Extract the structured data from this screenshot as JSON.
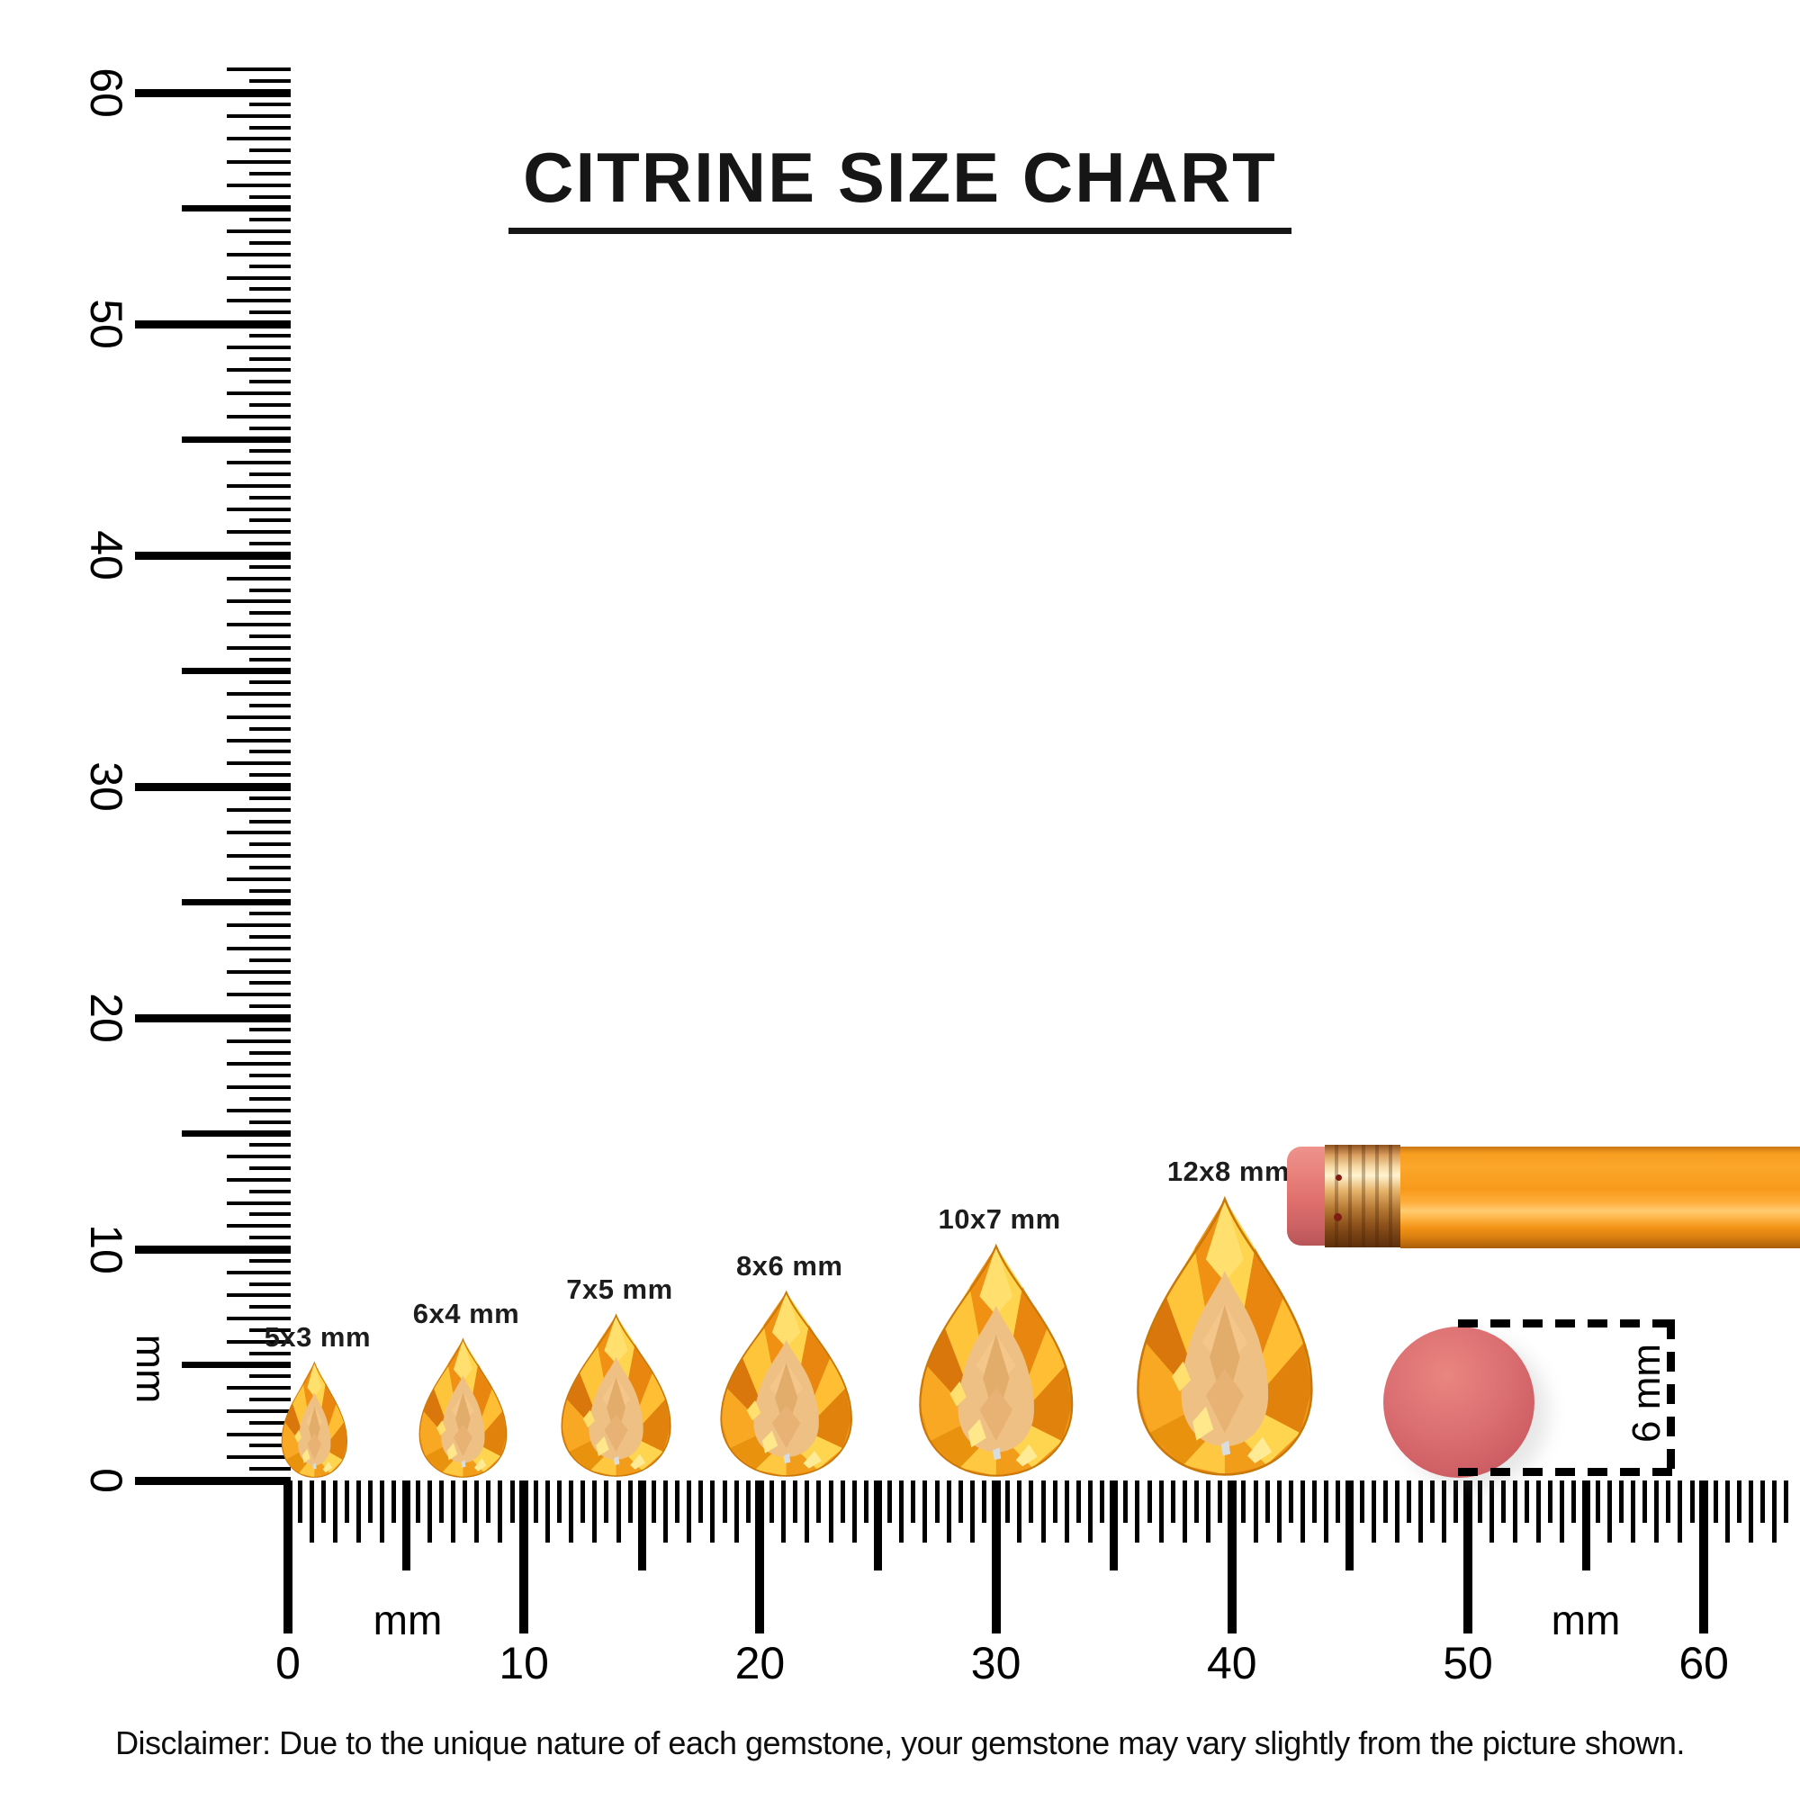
{
  "title": {
    "text": "CITRINE SIZE CHART"
  },
  "disclaimer": {
    "text": "Disclaimer: Due to the unique nature of each gemstone, your gemstone may vary slightly from the picture shown."
  },
  "rulers": {
    "vertical": {
      "unit": "mm",
      "min": 0,
      "max": 60,
      "major_step": 10,
      "labels": [
        "0",
        "10",
        "20",
        "30",
        "40",
        "50",
        "60"
      ],
      "mm_label": "mm"
    },
    "horizontal": {
      "unit": "mm",
      "min": 0,
      "max": 60,
      "major_step": 10,
      "labels": [
        "0",
        "10",
        "20",
        "30",
        "40",
        "50",
        "60"
      ],
      "mm_label_left": "mm",
      "mm_label_right": "mm"
    }
  },
  "gems": [
    {
      "label": "5x3 mm",
      "width_mm": 3,
      "height_mm": 5,
      "center_mm": 1.1
    },
    {
      "label": "6x4 mm",
      "width_mm": 4,
      "height_mm": 6,
      "center_mm": 7.4
    },
    {
      "label": "7x5 mm",
      "width_mm": 5,
      "height_mm": 7,
      "center_mm": 13.9
    },
    {
      "label": "8x6 mm",
      "width_mm": 6,
      "height_mm": 8,
      "center_mm": 21.1
    },
    {
      "label": "10x7 mm",
      "width_mm": 7,
      "height_mm": 10,
      "center_mm": 30.0
    },
    {
      "label": "12x8 mm",
      "width_mm": 8,
      "height_mm": 12,
      "center_mm": 39.7
    }
  ],
  "eraser_measure": {
    "label": "6 mm",
    "diameter_mm": 6.4
  },
  "colors": {
    "citrine_main": "#F6A229",
    "citrine_bright": "#FFD44F",
    "citrine_dark": "#D9760C",
    "citrine_table": "#EFC084",
    "pencil_body": "#F79D1F",
    "pencil_eraser": "#E87F7A",
    "pencil_ferrule": "#D99E5E",
    "eraser_disc": "#D06166",
    "ink": "#000000"
  },
  "chart_data": {
    "type": "table",
    "title": "CITRINE SIZE CHART",
    "unit": "mm",
    "columns": [
      "size_label",
      "width_mm",
      "height_mm"
    ],
    "rows": [
      [
        "5x3 mm",
        3,
        5
      ],
      [
        "6x4 mm",
        4,
        6
      ],
      [
        "7x5 mm",
        5,
        7
      ],
      [
        "8x6 mm",
        6,
        8
      ],
      [
        "10x7 mm",
        7,
        10
      ],
      [
        "12x8 mm",
        8,
        12
      ]
    ],
    "x_axis": {
      "label": "mm",
      "range": [
        0,
        60
      ],
      "ticks": [
        0,
        10,
        20,
        30,
        40,
        50,
        60
      ],
      "minor_tick_step_mm": 0.5
    },
    "y_axis": {
      "label": "mm",
      "range": [
        0,
        60
      ],
      "ticks": [
        0,
        10,
        20,
        30,
        40,
        50,
        60
      ],
      "minor_tick_step_mm": 0.5
    },
    "reference_objects": [
      "pencil",
      "round eraser 6 mm"
    ],
    "legend_position": "none",
    "grid": false
  }
}
